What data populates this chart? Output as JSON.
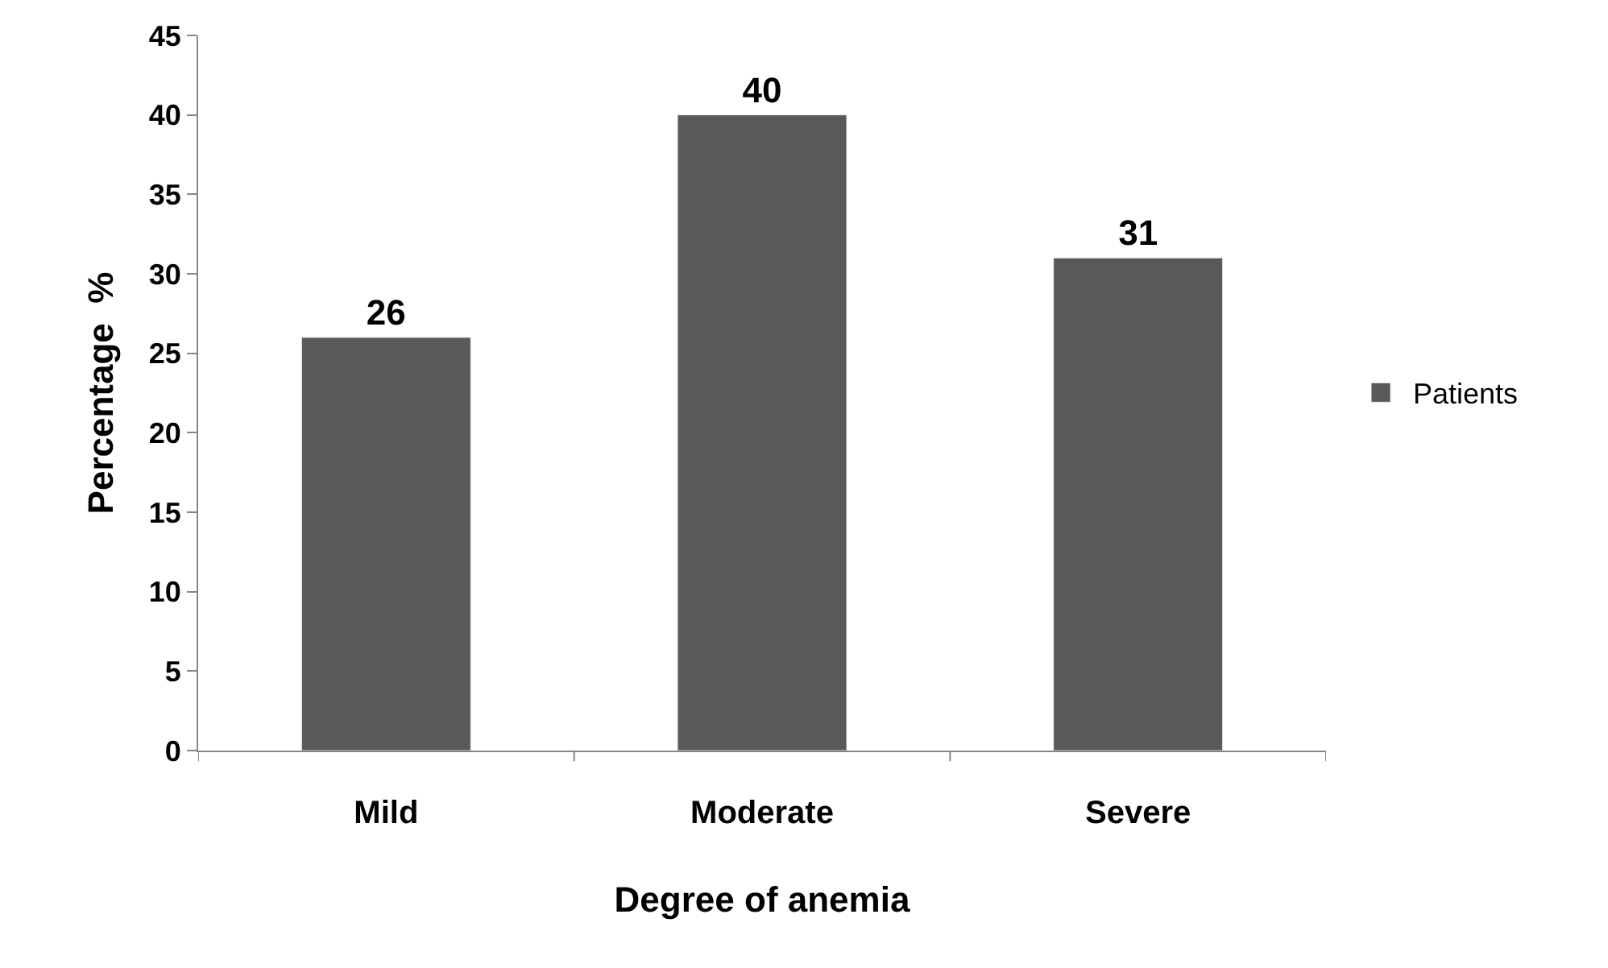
{
  "chart_data": {
    "type": "bar",
    "xlabel": "Degree of anemia",
    "ylabel": "Percentage  %",
    "categories": [
      "Mild",
      "Moderate",
      "Severe"
    ],
    "series": [
      {
        "name": "Patients",
        "color": "#595959",
        "values": [
          26,
          40,
          31
        ]
      }
    ],
    "ylim": [
      0,
      45
    ],
    "yticks": [
      0,
      5,
      10,
      15,
      20,
      25,
      30,
      35,
      40,
      45
    ],
    "data_labels": true,
    "legend": "right"
  }
}
